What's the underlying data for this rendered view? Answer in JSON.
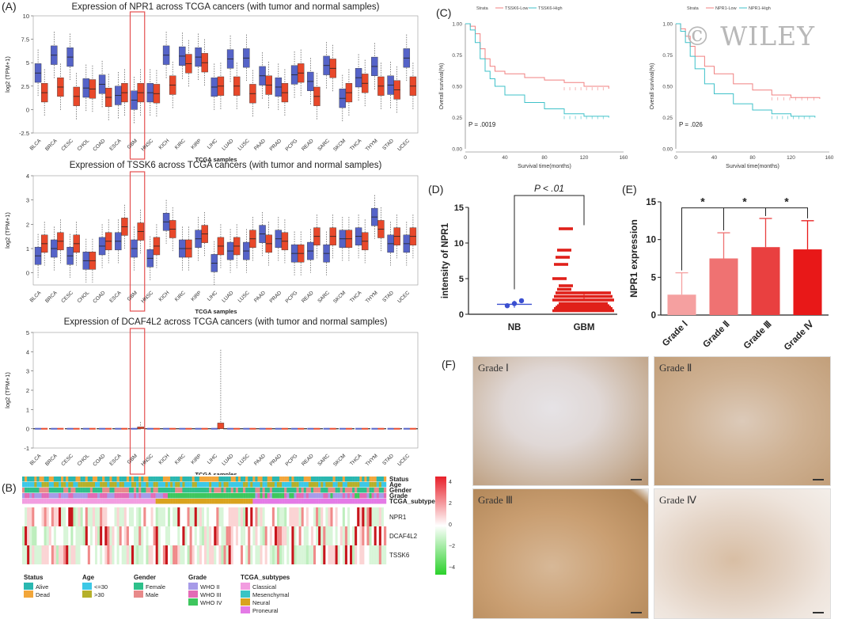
{
  "figure": {
    "panel_labels": {
      "A": "(A)",
      "B": "(B)",
      "C": "(C)",
      "D": "(D)",
      "E": "(E)",
      "F": "(F)"
    },
    "watermark": "© WILEY",
    "colors": {
      "tumor": "#e8482a",
      "normal": "#5563c8",
      "highlight": "#e45050",
      "km_low": "#f08080",
      "km_high": "#3fc1c9",
      "heat_hi": "#e8202a",
      "heat_lo": "#2bd12b"
    }
  },
  "panel_a": {
    "ylabel": "log2 (TPM+1)",
    "xlabel": "TCGA samples",
    "categories": [
      "BLCA",
      "BRCA",
      "CESC",
      "CHOL",
      "COAD",
      "ESCA",
      "GBM",
      "HNSC",
      "KICH",
      "KIRC",
      "KIRP",
      "LIHC",
      "LUAD",
      "LUSC",
      "PAAD",
      "PRAD",
      "PCPG",
      "READ",
      "SARC",
      "SKCM",
      "THCA",
      "THYM",
      "STAD",
      "UCEC"
    ],
    "highlight_category": "GBM",
    "plots": [
      {
        "title": "Expression of NPR1 across TCGA cancers (with tumor and normal samples)",
        "yticks": [
          "-2.5",
          "0",
          "2.5",
          "5",
          "7.5",
          "10"
        ]
      },
      {
        "title": "Expression of TSSK6 across TCGA cancers (with tumor and normal samples)",
        "yticks": [
          "0",
          "1",
          "2",
          "3",
          "4"
        ]
      },
      {
        "title": "Expression of DCAF4L2 across TCGA cancers (with tumor and normal samples)",
        "yticks": [
          "-1",
          "0",
          "1",
          "2",
          "3",
          "4",
          "5"
        ]
      }
    ]
  },
  "chart_data": [
    {
      "type": "box",
      "title": "Expression of NPR1 across TCGA cancers (with tumor and normal samples)",
      "xlabel": "TCGA samples",
      "ylabel": "log2 (TPM+1)",
      "ylim": [
        -2.5,
        10
      ],
      "categories": [
        "BLCA",
        "BRCA",
        "CESC",
        "CHOL",
        "COAD",
        "ESCA",
        "GBM",
        "HNSC",
        "KICH",
        "KIRC",
        "KIRP",
        "LIHC",
        "LUAD",
        "LUSC",
        "PAAD",
        "PRAD",
        "PCPG",
        "READ",
        "SARC",
        "SKCM",
        "THCA",
        "THYM",
        "STAD",
        "UCEC"
      ],
      "tumor_median": [
        1.8,
        2.4,
        1.4,
        2.2,
        1.3,
        1.8,
        1.8,
        1.7,
        2.6,
        4.9,
        5.0,
        2.5,
        2.5,
        1.7,
        2.6,
        1.8,
        3.9,
        1.4,
        4.4,
        1.8,
        2.8,
        2.5,
        2.1,
        2.5
      ],
      "normal_median": [
        3.9,
        5.8,
        5.6,
        2.3,
        2.7,
        1.5,
        1.0,
        1.8,
        5.8,
        5.7,
        5.6,
        2.4,
        5.4,
        5.5,
        3.6,
        2.4,
        3.7,
        3.0,
        4.7,
        1.2,
        3.4,
        4.6,
        2.6,
        5.5
      ]
    },
    {
      "type": "box",
      "title": "Expression of TSSK6 across TCGA cancers (with tumor and normal samples)",
      "xlabel": "TCGA samples",
      "ylabel": "log2 (TPM+1)",
      "ylim": [
        -0.5,
        4
      ],
      "categories": [
        "BLCA",
        "BRCA",
        "CESC",
        "CHOL",
        "COAD",
        "ESCA",
        "GBM",
        "HNSC",
        "KICH",
        "KIRC",
        "KIRP",
        "LIHC",
        "LUAD",
        "LUSC",
        "PAAD",
        "PRAD",
        "PCPG",
        "READ",
        "SARC",
        "SKCM",
        "THCA",
        "THYM",
        "STAD",
        "UCEC"
      ],
      "tumor_median": [
        1.2,
        1.3,
        1.2,
        0.5,
        1.3,
        1.9,
        1.7,
        1.1,
        1.8,
        1.0,
        1.6,
        1.1,
        1.1,
        1.4,
        1.2,
        1.3,
        0.8,
        1.5,
        1.5,
        1.4,
        1.3,
        1.8,
        1.5,
        1.5
      ],
      "normal_median": [
        0.7,
        1.0,
        0.7,
        0.5,
        1.1,
        1.3,
        1.0,
        0.6,
        2.1,
        1.0,
        1.4,
        0.4,
        0.9,
        0.9,
        1.6,
        1.4,
        0.8,
        0.9,
        0.8,
        1.4,
        1.5,
        2.3,
        1.2,
        1.2
      ]
    },
    {
      "type": "box",
      "title": "Expression of DCAF4L2 across TCGA cancers (with tumor and normal samples)",
      "xlabel": "TCGA samples",
      "ylabel": "log2 (TPM+1)",
      "ylim": [
        -1,
        5
      ],
      "categories": [
        "BLCA",
        "BRCA",
        "CESC",
        "CHOL",
        "COAD",
        "ESCA",
        "GBM",
        "HNSC",
        "KICH",
        "KIRC",
        "KIRP",
        "LIHC",
        "LUAD",
        "LUSC",
        "PAAD",
        "PRAD",
        "PCPG",
        "READ",
        "SARC",
        "SKCM",
        "THCA",
        "THYM",
        "STAD",
        "UCEC"
      ],
      "tumor_median": [
        0,
        0,
        0,
        0,
        0,
        0,
        0.1,
        0,
        0,
        0,
        0,
        0.3,
        0,
        0,
        0,
        0,
        0,
        0,
        0,
        0,
        0,
        0,
        0,
        0
      ],
      "normal_median": [
        0,
        0,
        0,
        0,
        0,
        0,
        0,
        0,
        0,
        0,
        0,
        0,
        0,
        0,
        0,
        0,
        0,
        0,
        0,
        0,
        0,
        0,
        0,
        0
      ]
    },
    {
      "type": "line",
      "title": "",
      "xlabel": "Survival time(months)",
      "ylabel": "Overall survival(%)",
      "xlim": [
        0,
        160
      ],
      "ylim": [
        0,
        1
      ],
      "legend_title": "Strata",
      "series": [
        {
          "name": "TSSK6-Low",
          "x": [
            0,
            5,
            10,
            15,
            20,
            25,
            30,
            40,
            60,
            80,
            100,
            120,
            145
          ],
          "y": [
            1.0,
            0.98,
            0.92,
            0.8,
            0.72,
            0.66,
            0.62,
            0.6,
            0.57,
            0.55,
            0.53,
            0.5,
            0.48
          ]
        },
        {
          "name": "TSSK6-High",
          "x": [
            0,
            5,
            10,
            15,
            20,
            25,
            30,
            40,
            60,
            80,
            100,
            120,
            145
          ],
          "y": [
            1.0,
            0.95,
            0.85,
            0.72,
            0.62,
            0.56,
            0.5,
            0.43,
            0.37,
            0.32,
            0.28,
            0.26,
            0.25
          ]
        }
      ],
      "annotation": "P = .0019",
      "xticks": [
        "0",
        "40",
        "80",
        "120",
        "160"
      ],
      "yticks": [
        "0.00",
        "0.25",
        "0.50",
        "0.75",
        "1.00"
      ]
    },
    {
      "type": "line",
      "title": "",
      "xlabel": "Survival time(months)",
      "ylabel": "Overall survival(%)",
      "xlim": [
        0,
        160
      ],
      "ylim": [
        0,
        1
      ],
      "legend_title": "Strata",
      "series": [
        {
          "name": "NPR1-Low",
          "x": [
            0,
            5,
            10,
            15,
            20,
            30,
            40,
            60,
            80,
            100,
            120,
            150
          ],
          "y": [
            1.0,
            0.96,
            0.9,
            0.82,
            0.74,
            0.66,
            0.6,
            0.52,
            0.47,
            0.43,
            0.41,
            0.4
          ]
        },
        {
          "name": "NPR1-High",
          "x": [
            0,
            5,
            10,
            15,
            20,
            30,
            40,
            60,
            80,
            100,
            120,
            145
          ],
          "y": [
            1.0,
            0.94,
            0.85,
            0.74,
            0.64,
            0.52,
            0.44,
            0.36,
            0.31,
            0.28,
            0.26,
            0.25
          ]
        }
      ],
      "annotation": "P = .026",
      "xticks": [
        "0",
        "40",
        "80",
        "120",
        "160"
      ],
      "yticks": [
        "0.00",
        "0.25",
        "0.50",
        "0.75",
        "1.00"
      ]
    },
    {
      "type": "scatter",
      "title": "",
      "ylabel": "intensity of NPR1",
      "categories": [
        "NB",
        "GBM"
      ],
      "ylim": [
        0,
        15
      ],
      "yticks": [
        "0",
        "5",
        "10",
        "15"
      ],
      "mean": [
        1.4,
        2.5
      ],
      "points": [
        [
          1.2,
          1.5,
          1.9
        ],
        [
          0.5,
          0.8,
          1.0,
          1.2,
          1.5,
          2.0,
          2.5,
          3.0,
          3.5,
          4.0,
          5.0,
          7.0,
          8.0,
          9.0,
          12.0
        ]
      ],
      "annotation": "P < .01"
    },
    {
      "type": "bar",
      "title": "",
      "ylabel": "NPR1 expression",
      "categories": [
        "Grade Ⅰ",
        "Grade Ⅱ",
        "Grade Ⅲ",
        "Grade Ⅳ"
      ],
      "values": [
        2.7,
        7.5,
        9.0,
        8.7
      ],
      "errors": [
        2.9,
        3.4,
        3.8,
        3.8
      ],
      "ylim": [
        0,
        15
      ],
      "yticks": [
        "0",
        "5",
        "10",
        "15"
      ],
      "significance": [
        "*",
        "*",
        "*"
      ],
      "colors": [
        "#f5a0a0",
        "#ef7272",
        "#e94040",
        "#e81818"
      ]
    }
  ],
  "panel_b": {
    "track_labels": [
      "Status",
      "Age",
      "Gender",
      "Grade",
      "TCGA_subtypes"
    ],
    "gene_labels": [
      "NPR1",
      "DCAF4L2",
      "TSSK6"
    ],
    "scale_ticks": [
      "4",
      "2",
      "0",
      "−2",
      "−4"
    ],
    "legends": [
      {
        "title": "Status",
        "items": [
          {
            "label": "Alive",
            "color": "#2ab7b0"
          },
          {
            "label": "Dead",
            "color": "#f2a63a"
          }
        ]
      },
      {
        "title": "Age",
        "items": [
          {
            "label": "<=30",
            "color": "#3cc8e6"
          },
          {
            "label": ">30",
            "color": "#b5b02a"
          }
        ]
      },
      {
        "title": "Gender",
        "items": [
          {
            "label": "Female",
            "color": "#2ec08a"
          },
          {
            "label": "Male",
            "color": "#e88a8a"
          }
        ]
      },
      {
        "title": "Grade",
        "items": [
          {
            "label": "WHO II",
            "color": "#a79be8"
          },
          {
            "label": "WHO III",
            "color": "#e36bb6"
          },
          {
            "label": "WHO IV",
            "color": "#3ec65e"
          }
        ]
      },
      {
        "title": "TCGA_subtypes",
        "items": [
          {
            "label": "Classical",
            "color": "#f29de0"
          },
          {
            "label": "Mesenchymal",
            "color": "#3ac4c4"
          },
          {
            "label": "Neural",
            "color": "#d9a31e"
          },
          {
            "label": "Proneural",
            "color": "#e47ae6"
          }
        ]
      }
    ]
  },
  "panel_f": {
    "grades": [
      "Grade Ⅰ",
      "Grade Ⅱ",
      "Grade Ⅲ",
      "Grade Ⅳ"
    ]
  }
}
